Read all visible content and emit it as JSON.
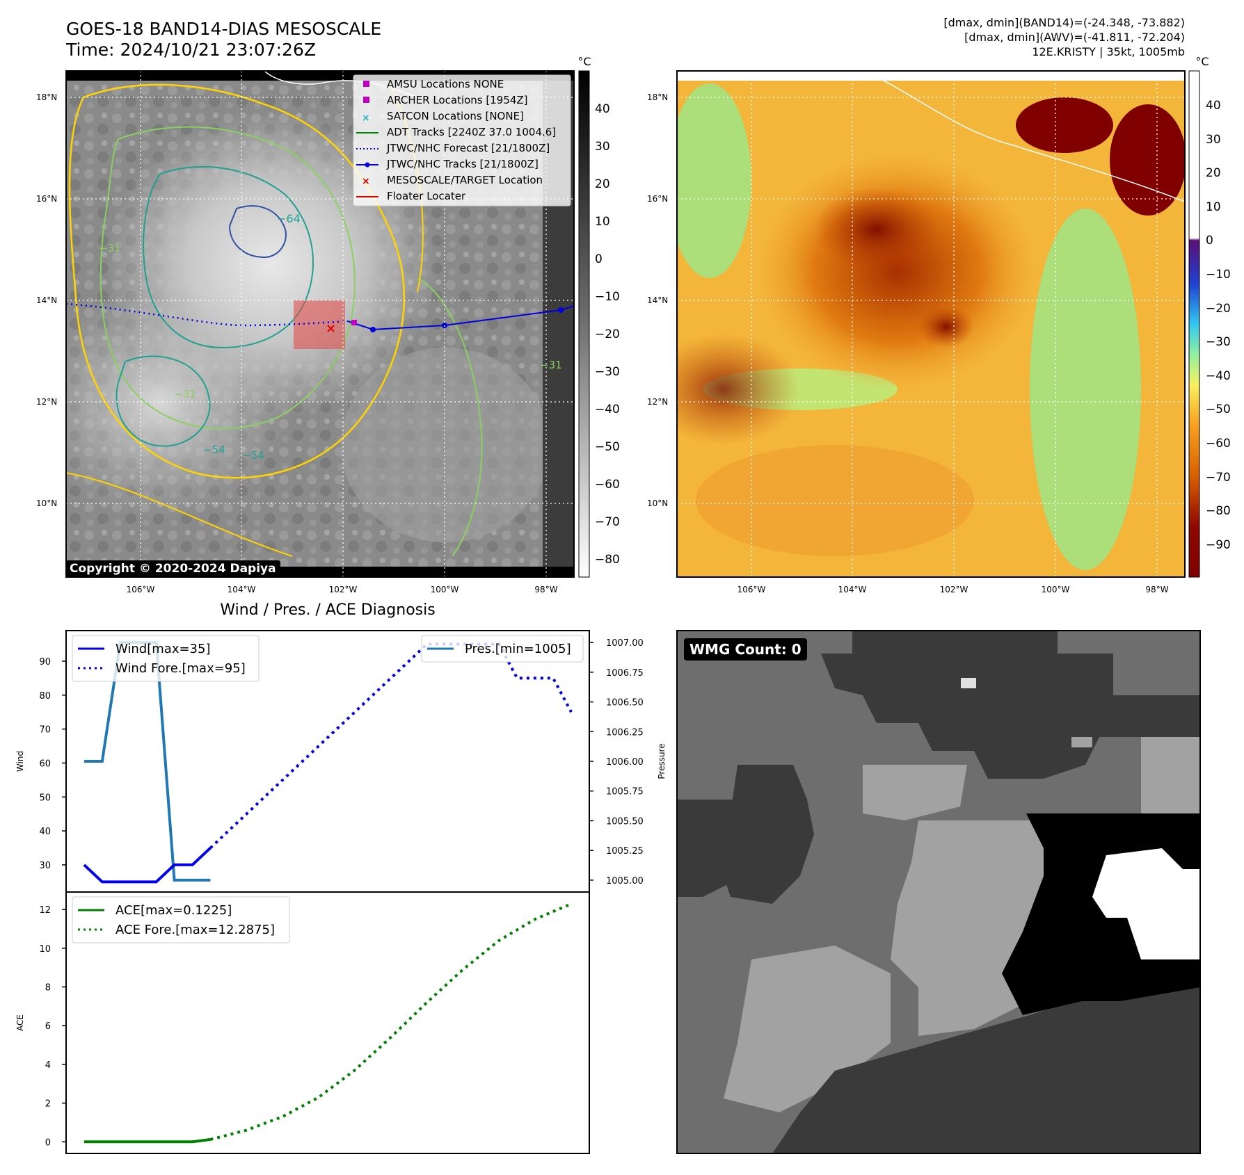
{
  "header": {
    "title_line1": "GOES-18 BAND14-DIAS MESOSCALE",
    "title_line2": "Time: 2024/10/21 23:07:26Z",
    "right_line1": "[dmax, dmin](BAND14)=(-24.348, -73.882)",
    "right_line2": "[dmax, dmin](AWV)=(-41.811, -72.204)",
    "right_line3": "12E.KRISTY | 35kt, 1005mb"
  },
  "copyright": "Copyright © 2020-2024 Dapiya",
  "map_axes": {
    "lat_labels": [
      "18°N",
      "16°N",
      "14°N",
      "12°N",
      "10°N"
    ],
    "lon_labels": [
      "106°W",
      "104°W",
      "102°W",
      "100°W",
      "98°W"
    ]
  },
  "ir_colorbar": {
    "unit": "°C",
    "ticks": [
      "40",
      "30",
      "20",
      "10",
      "0",
      "−10",
      "−20",
      "−30",
      "−40",
      "−50",
      "−60",
      "−70",
      "−80"
    ]
  },
  "awv_colorbar": {
    "unit": "°C",
    "ticks": [
      "40",
      "30",
      "20",
      "10",
      "0",
      "−10",
      "−20",
      "−30",
      "−40",
      "−50",
      "−60",
      "−70",
      "−80",
      "−90"
    ]
  },
  "legend": {
    "items": [
      {
        "label": "AMSU Locations NONE",
        "marker": "square",
        "color": "#c000c0"
      },
      {
        "label": "ARCHER Locations [1954Z]",
        "marker": "square",
        "color": "#c000c0"
      },
      {
        "label": "SATCON Locations [NONE]",
        "marker": "x",
        "color": "#20b0c0"
      },
      {
        "label": "ADT Tracks [2240Z 37.0 1004.6]",
        "marker": "line",
        "color": "#008000"
      },
      {
        "label": "JTWC/NHC Forecast [21/1800Z]",
        "marker": "dotted",
        "color": "#0000dd"
      },
      {
        "label": "JTWC/NHC Tracks [21/1800Z]",
        "marker": "line-dot",
        "color": "#0000dd"
      },
      {
        "label": "MESOSCALE/TARGET Location",
        "marker": "x",
        "color": "#dd0000"
      },
      {
        "label": "Floater Locater",
        "marker": "line",
        "color": "#dd0000"
      }
    ]
  },
  "contour_labels": [
    "−64",
    "−31",
    "−31",
    "−54",
    "−54",
    "−31"
  ],
  "diag_title": "Wind / Pres. / ACE Diagnosis",
  "wmg_label": "WMG Count: 0",
  "chart_data": [
    {
      "type": "line",
      "title": "Wind / Pres. / ACE Diagnosis",
      "ylabel": "Wind",
      "y2label": "Pressure",
      "ylim": [
        22,
        99
      ],
      "y2lim": [
        1004.9,
        1007.1
      ],
      "yticks": [
        30,
        40,
        50,
        60,
        70,
        80,
        90
      ],
      "y2ticks": [
        "1005.00",
        "1005.25",
        "1005.50",
        "1005.75",
        "1006.00",
        "1006.25",
        "1006.50",
        "1006.75",
        "1007.00"
      ],
      "series": [
        {
          "name": "Wind[max=35]",
          "style": "solid",
          "color": "#0000ee",
          "x": [
            0,
            1,
            2,
            3,
            4,
            5,
            6,
            7
          ],
          "values": [
            30,
            25,
            25,
            25,
            25,
            30,
            30,
            35
          ]
        },
        {
          "name": "Wind Fore.[max=95]",
          "style": "dotted",
          "color": "#0000ee",
          "x": [
            7,
            10,
            13,
            16,
            19,
            20,
            21,
            22,
            23,
            24,
            25,
            26,
            27
          ],
          "values": [
            35,
            50,
            65,
            80,
            95,
            95,
            95,
            95,
            95,
            85,
            85,
            85,
            75
          ]
        },
        {
          "name": "Pres.[min=1005]",
          "style": "solid",
          "color": "#1f77b4",
          "axis": "right",
          "x": [
            0,
            1,
            2,
            3,
            4,
            5,
            6,
            7
          ],
          "values": [
            1006.0,
            1006.0,
            1007.0,
            1007.0,
            1007.0,
            1005.0,
            1005.0,
            1005.0
          ]
        }
      ]
    },
    {
      "type": "line",
      "ylabel": "ACE",
      "ylim": [
        -0.6,
        12.9
      ],
      "yticks": [
        0,
        2,
        4,
        6,
        8,
        10,
        12
      ],
      "series": [
        {
          "name": "ACE[max=0.1225]",
          "style": "solid",
          "color": "#008000",
          "x": [
            0,
            1,
            2,
            3,
            4,
            5,
            6,
            7
          ],
          "values": [
            0,
            0,
            0,
            0,
            0,
            0,
            0,
            0.1225
          ]
        },
        {
          "name": "ACE Fore.[max=12.2875]",
          "style": "dotted",
          "color": "#008000",
          "x": [
            7,
            9,
            11,
            13,
            15,
            17,
            19,
            21,
            23,
            25,
            27
          ],
          "values": [
            0.1225,
            0.6,
            1.3,
            2.3,
            3.7,
            5.4,
            7.2,
            8.9,
            10.4,
            11.5,
            12.2875
          ]
        }
      ]
    }
  ]
}
